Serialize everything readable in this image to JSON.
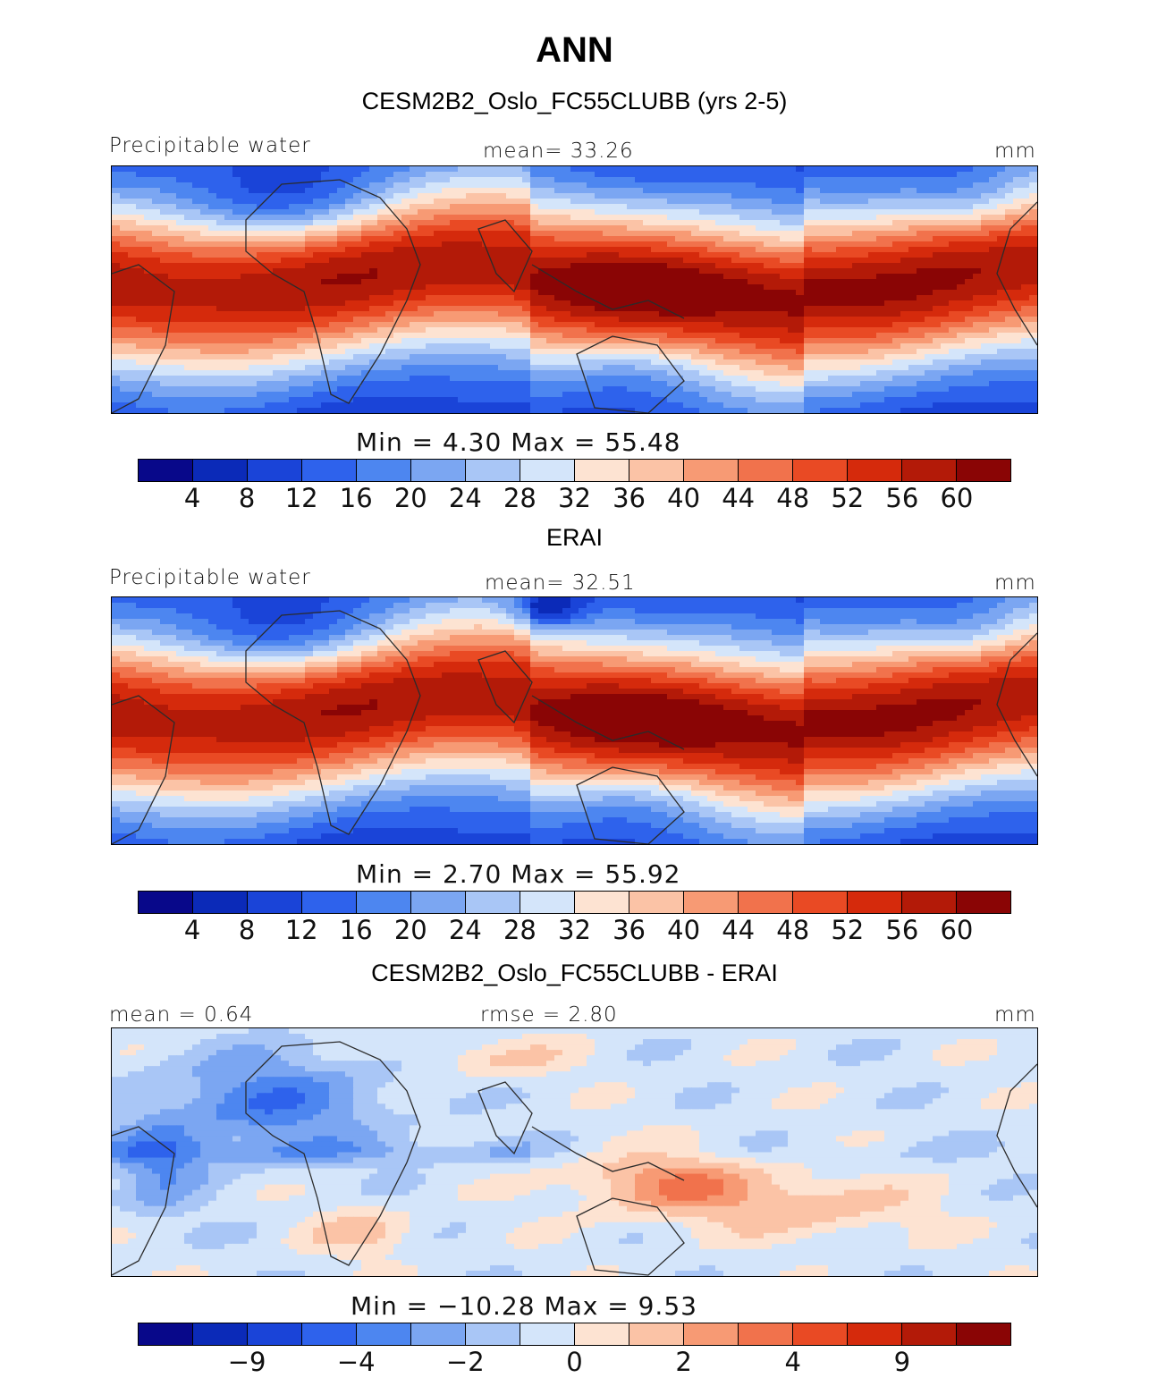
{
  "page_title": "ANN",
  "palette": [
    "#08088a",
    "#0b2ab8",
    "#1a44d8",
    "#2e62ec",
    "#4d86f0",
    "#7ba6f2",
    "#a9c6f6",
    "#d4e5fa",
    "#fde3d2",
    "#fbc3a6",
    "#f79a74",
    "#f1724c",
    "#e94a24",
    "#d52a0c",
    "#b31a08",
    "#8a0505"
  ],
  "land_color": "#2b2b2b",
  "chart_data": [
    {
      "type": "heatmap",
      "title": "CESM2B2_Oslo_FC55CLUBB (yrs 2-5)",
      "left_label": "Precipitable water",
      "center_label": "mean=  33.26",
      "right_label": "mm",
      "min_max_label": "Min =    4.30  Max =   55.48",
      "min": 4.3,
      "max": 55.48,
      "mean": 33.26,
      "colorbar_ticks": [
        "4",
        "8",
        "12",
        "16",
        "20",
        "24",
        "28",
        "32",
        "36",
        "40",
        "44",
        "48",
        "52",
        "56",
        "60"
      ],
      "variant": "model"
    },
    {
      "type": "heatmap",
      "title": "ERAI",
      "left_label": "Precipitable water",
      "center_label": "mean=  32.51",
      "right_label": "mm",
      "min_max_label": "Min =    2.70  Max =   55.92",
      "min": 2.7,
      "max": 55.92,
      "mean": 32.51,
      "colorbar_ticks": [
        "4",
        "8",
        "12",
        "16",
        "20",
        "24",
        "28",
        "32",
        "36",
        "40",
        "44",
        "48",
        "52",
        "56",
        "60"
      ],
      "variant": "obs"
    },
    {
      "type": "heatmap",
      "title": "CESM2B2_Oslo_FC55CLUBB - ERAI",
      "left_label": "mean =    0.64",
      "center_label": "rmse =    2.80",
      "right_label": "mm",
      "min_max_label": "Min = −10.28  Max =    9.53",
      "min": -10.28,
      "max": 9.53,
      "mean": 0.64,
      "rmse": 2.8,
      "colorbar_ticks": [
        "−9",
        "−4",
        "−2",
        "0",
        "2",
        "4",
        "9"
      ],
      "variant": "diff"
    }
  ]
}
